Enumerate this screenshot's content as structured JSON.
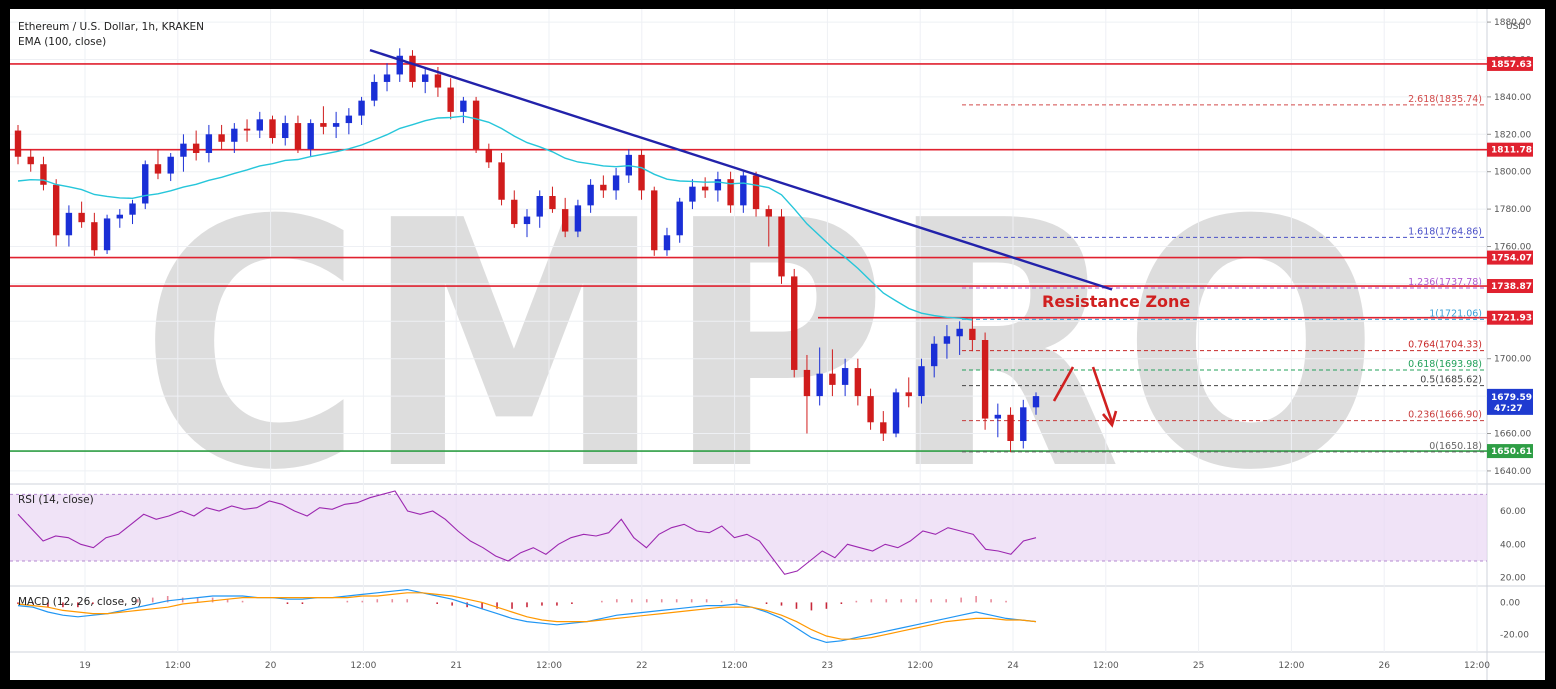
{
  "chart_data": [
    {
      "type": "candlestick",
      "title": "Ethereum / U.S. Dollar, 1h, KRAKEN",
      "indicator": "EMA (100, close)",
      "currency": "USD",
      "ylim": [
        1633,
        1887
      ],
      "y_ticks": [
        "1880.00",
        "1860.00",
        "1840.00",
        "1820.00",
        "1800.00",
        "1780.00",
        "1760.00",
        "1740.00",
        "1720.00",
        "1700.00",
        "1680.00",
        "1660.00",
        "1640.00"
      ],
      "x_ticks": [
        "19",
        "12:00",
        "20",
        "12:00",
        "21",
        "12:00",
        "22",
        "12:00",
        "23",
        "12:00",
        "24",
        "12:00",
        "25",
        "12:00",
        "26",
        "12:00"
      ],
      "horizontal_levels": [
        {
          "label": "1857.63",
          "value": 1857.63,
          "color": "#e0212f"
        },
        {
          "label": "1811.78",
          "value": 1811.78,
          "color": "#e0212f"
        },
        {
          "label": "1754.07",
          "value": 1754.07,
          "color": "#e0212f"
        },
        {
          "label": "1738.87",
          "value": 1738.87,
          "color": "#e0212f"
        },
        {
          "label": "1721.93",
          "value": 1721.93,
          "color": "#e0212f"
        },
        {
          "label": "1650.61",
          "value": 1650.61,
          "color": "#2e9e45"
        }
      ],
      "price_tag": {
        "value": 1679.59,
        "label": "1679.59",
        "countdown": "47:27",
        "color": "#1f3bd0"
      },
      "fib_levels": [
        {
          "label": "2.618(1835.74)",
          "value": 1835.74,
          "color": "#d24a4a"
        },
        {
          "label": "1.618(1764.86)",
          "value": 1764.86,
          "color": "#4a50c8"
        },
        {
          "label": "1.236(1737.78)",
          "value": 1737.78,
          "color": "#b05ad0"
        },
        {
          "label": "1(1721.06)",
          "value": 1721.06,
          "color": "#3aa0d8"
        },
        {
          "label": "0.764(1704.33)",
          "value": 1704.33,
          "color": "#c82828"
        },
        {
          "label": "0.618(1693.98)",
          "value": 1693.98,
          "color": "#22a05a"
        },
        {
          "label": "0.5(1685.62)",
          "value": 1685.62,
          "color": "#444444"
        },
        {
          "label": "0.236(1666.90)",
          "value": 1666.9,
          "color": "#c83c3c"
        },
        {
          "label": "0(1650.18)",
          "value": 1650.18,
          "color": "#666666"
        }
      ],
      "annotations": [
        {
          "text": "Resistance Zone",
          "color": "#d02020"
        }
      ],
      "watermark": "CMPRO",
      "trendline": {
        "from": [
          0.105,
          1863
        ],
        "to": [
          0.175,
          1738
        ],
        "color": "#2222aa"
      },
      "ohlc": [
        [
          1822,
          1825,
          1804,
          1808
        ],
        [
          1808,
          1812,
          1800,
          1804
        ],
        [
          1804,
          1808,
          1790,
          1793
        ],
        [
          1793,
          1796,
          1760,
          1766
        ],
        [
          1766,
          1782,
          1760,
          1778
        ],
        [
          1778,
          1784,
          1770,
          1773
        ],
        [
          1773,
          1778,
          1755,
          1758
        ],
        [
          1758,
          1777,
          1756,
          1775
        ],
        [
          1775,
          1780,
          1770,
          1777
        ],
        [
          1777,
          1785,
          1772,
          1783
        ],
        [
          1783,
          1806,
          1780,
          1804
        ],
        [
          1804,
          1812,
          1796,
          1799
        ],
        [
          1799,
          1810,
          1795,
          1808
        ],
        [
          1808,
          1820,
          1800,
          1815
        ],
        [
          1815,
          1822,
          1806,
          1810
        ],
        [
          1810,
          1825,
          1805,
          1820
        ],
        [
          1820,
          1825,
          1812,
          1816
        ],
        [
          1816,
          1826,
          1810,
          1823
        ],
        [
          1823,
          1828,
          1816,
          1822
        ],
        [
          1822,
          1832,
          1818,
          1828
        ],
        [
          1828,
          1830,
          1815,
          1818
        ],
        [
          1818,
          1830,
          1814,
          1826
        ],
        [
          1826,
          1830,
          1810,
          1812
        ],
        [
          1812,
          1828,
          1808,
          1826
        ],
        [
          1826,
          1835,
          1820,
          1824
        ],
        [
          1824,
          1832,
          1818,
          1826
        ],
        [
          1826,
          1834,
          1820,
          1830
        ],
        [
          1830,
          1840,
          1825,
          1838
        ],
        [
          1838,
          1852,
          1835,
          1848
        ],
        [
          1848,
          1858,
          1843,
          1852
        ],
        [
          1852,
          1866,
          1848,
          1862
        ],
        [
          1862,
          1865,
          1845,
          1848
        ],
        [
          1848,
          1855,
          1842,
          1852
        ],
        [
          1852,
          1856,
          1840,
          1845
        ],
        [
          1845,
          1850,
          1828,
          1832
        ],
        [
          1832,
          1840,
          1826,
          1838
        ],
        [
          1838,
          1840,
          1810,
          1812
        ],
        [
          1812,
          1815,
          1802,
          1805
        ],
        [
          1805,
          1810,
          1782,
          1785
        ],
        [
          1785,
          1790,
          1770,
          1772
        ],
        [
          1772,
          1780,
          1765,
          1776
        ],
        [
          1776,
          1790,
          1770,
          1787
        ],
        [
          1787,
          1792,
          1778,
          1780
        ],
        [
          1780,
          1786,
          1765,
          1768
        ],
        [
          1768,
          1785,
          1765,
          1782
        ],
        [
          1782,
          1796,
          1778,
          1793
        ],
        [
          1793,
          1798,
          1786,
          1790
        ],
        [
          1790,
          1802,
          1785,
          1798
        ],
        [
          1798,
          1812,
          1794,
          1809
        ],
        [
          1809,
          1812,
          1785,
          1790
        ],
        [
          1790,
          1792,
          1755,
          1758
        ],
        [
          1758,
          1770,
          1755,
          1766
        ],
        [
          1766,
          1786,
          1762,
          1784
        ],
        [
          1784,
          1796,
          1780,
          1792
        ],
        [
          1792,
          1797,
          1786,
          1790
        ],
        [
          1790,
          1800,
          1784,
          1796
        ],
        [
          1796,
          1800,
          1778,
          1782
        ],
        [
          1782,
          1800,
          1778,
          1798
        ],
        [
          1798,
          1800,
          1776,
          1780
        ],
        [
          1780,
          1782,
          1760,
          1776
        ],
        [
          1776,
          1780,
          1740,
          1744
        ],
        [
          1744,
          1748,
          1690,
          1694
        ],
        [
          1694,
          1702,
          1660,
          1680
        ],
        [
          1680,
          1706,
          1675,
          1692
        ],
        [
          1692,
          1705,
          1680,
          1686
        ],
        [
          1686,
          1700,
          1680,
          1695
        ],
        [
          1695,
          1700,
          1675,
          1680
        ],
        [
          1680,
          1684,
          1662,
          1666
        ],
        [
          1666,
          1672,
          1656,
          1660
        ],
        [
          1660,
          1684,
          1658,
          1682
        ],
        [
          1682,
          1690,
          1674,
          1680
        ],
        [
          1680,
          1700,
          1676,
          1696
        ],
        [
          1696,
          1712,
          1690,
          1708
        ],
        [
          1708,
          1718,
          1700,
          1712
        ],
        [
          1712,
          1720,
          1702,
          1716
        ],
        [
          1716,
          1722,
          1704,
          1710
        ],
        [
          1710,
          1714,
          1662,
          1668
        ],
        [
          1668,
          1676,
          1658,
          1670
        ],
        [
          1670,
          1674,
          1650,
          1656
        ],
        [
          1656,
          1678,
          1652,
          1674
        ],
        [
          1674,
          1682,
          1670,
          1680
        ]
      ]
    },
    {
      "type": "line",
      "title": "RSI (14, close)",
      "ylim": [
        15,
        75
      ],
      "y_ticks": [
        "60.00",
        "40.00",
        "20.00"
      ],
      "band": [
        30,
        70
      ],
      "color": "#9c27b0",
      "values": [
        58,
        50,
        42,
        45,
        44,
        40,
        38,
        44,
        46,
        52,
        58,
        55,
        57,
        60,
        57,
        62,
        60,
        63,
        61,
        62,
        66,
        64,
        60,
        57,
        62,
        61,
        64,
        65,
        68,
        70,
        72,
        60,
        58,
        60,
        55,
        48,
        42,
        38,
        33,
        30,
        35,
        38,
        34,
        40,
        44,
        46,
        45,
        47,
        55,
        44,
        38,
        46,
        50,
        52,
        48,
        47,
        51,
        44,
        46,
        42,
        32,
        22,
        24,
        30,
        36,
        32,
        40,
        38,
        36,
        40,
        38,
        42,
        48,
        46,
        50,
        48,
        46,
        37,
        36,
        34,
        42,
        44
      ]
    },
    {
      "type": "line",
      "title": "MACD (12, 26, close, 9)",
      "ylim": [
        -31,
        9
      ],
      "y_ticks": [
        "0.00",
        "-20.00"
      ],
      "series": [
        {
          "color": "#2196f3",
          "values": [
            -2,
            -3,
            -6,
            -8,
            -9,
            -8,
            -7,
            -5,
            -3,
            -1,
            1,
            2,
            3,
            4,
            4,
            4,
            3,
            3,
            2,
            2,
            3,
            3,
            4,
            5,
            6,
            7,
            8,
            6,
            4,
            2,
            -1,
            -4,
            -7,
            -10,
            -12,
            -13,
            -14,
            -13,
            -12,
            -10,
            -8,
            -7,
            -6,
            -5,
            -4,
            -3,
            -2,
            -2,
            -1,
            -3,
            -6,
            -10,
            -16,
            -22,
            -25,
            -24,
            -22,
            -20,
            -18,
            -16,
            -14,
            -12,
            -10,
            -8,
            -6,
            -8,
            -10,
            -11,
            -12
          ]
        },
        {
          "color": "#ff9800",
          "values": [
            -1,
            -2,
            -3,
            -5,
            -6,
            -7,
            -7,
            -6,
            -5,
            -4,
            -3,
            -1,
            0,
            1,
            2,
            3,
            3,
            3,
            3,
            3,
            3,
            3,
            3,
            4,
            4,
            5,
            6,
            6,
            5,
            4,
            2,
            0,
            -3,
            -6,
            -9,
            -11,
            -12,
            -12,
            -12,
            -11,
            -10,
            -9,
            -8,
            -7,
            -6,
            -5,
            -4,
            -3,
            -3,
            -3,
            -5,
            -8,
            -12,
            -17,
            -21,
            -23,
            -23,
            -22,
            -20,
            -18,
            -16,
            -14,
            -12,
            -11,
            -10,
            -10,
            -11,
            -11,
            -12
          ]
        }
      ],
      "histogram": [
        -1,
        -1,
        -3,
        -3,
        -3,
        -1,
        0,
        1,
        2,
        3,
        4,
        3,
        3,
        3,
        2,
        1,
        0,
        0,
        -1,
        -1,
        0,
        0,
        1,
        1,
        2,
        2,
        2,
        0,
        -1,
        -2,
        -3,
        -4,
        -4,
        -4,
        -3,
        -2,
        -2,
        -1,
        0,
        1,
        2,
        2,
        2,
        2,
        2,
        2,
        2,
        1,
        2,
        0,
        -1,
        -2,
        -4,
        -5,
        -4,
        -1,
        1,
        2,
        2,
        2,
        2,
        2,
        2,
        3,
        4,
        2,
        1,
        0,
        0
      ]
    }
  ]
}
